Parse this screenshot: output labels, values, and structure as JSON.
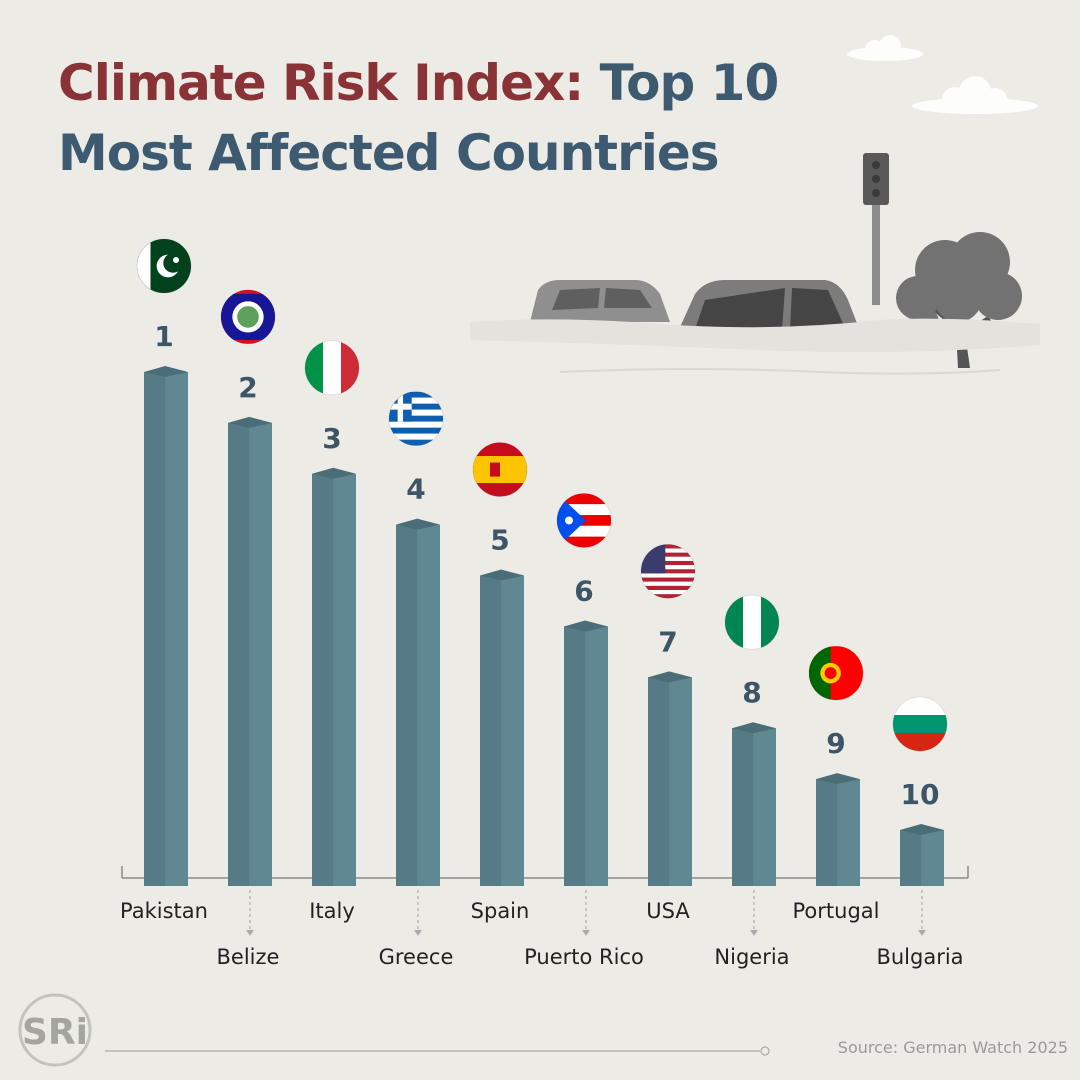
{
  "title": {
    "accent": "Climate Risk Index:",
    "main_line1": "Top 10",
    "main_line2": "Most Affected Countries"
  },
  "logo_text": "SRi",
  "source": "Source: German Watch 2025",
  "colors": {
    "background": "#ecebe6",
    "title_accent": "#8a3336",
    "title_main": "#3d5a71",
    "bar": "#5f8893",
    "text": "#222222",
    "rank": "#3d5566"
  },
  "chart_data": {
    "type": "bar",
    "categories": [
      "Pakistan",
      "Belize",
      "Italy",
      "Greece",
      "Spain",
      "Puerto Rico",
      "USA",
      "Nigeria",
      "Portugal",
      "Bulgaria"
    ],
    "ranks": [
      "1",
      "2",
      "3",
      "4",
      "5",
      "6",
      "7",
      "8",
      "9",
      "10"
    ],
    "values": [
      10,
      9,
      8,
      7,
      6,
      5,
      4,
      3,
      2,
      1
    ],
    "flags": [
      "pakistan",
      "belize",
      "italy",
      "greece",
      "spain",
      "puerto-rico",
      "usa",
      "nigeria",
      "portugal",
      "bulgaria"
    ],
    "title": "Climate Risk Index: Top 10 Most Affected Countries",
    "xlabel": "",
    "ylabel": "",
    "grid": false
  }
}
